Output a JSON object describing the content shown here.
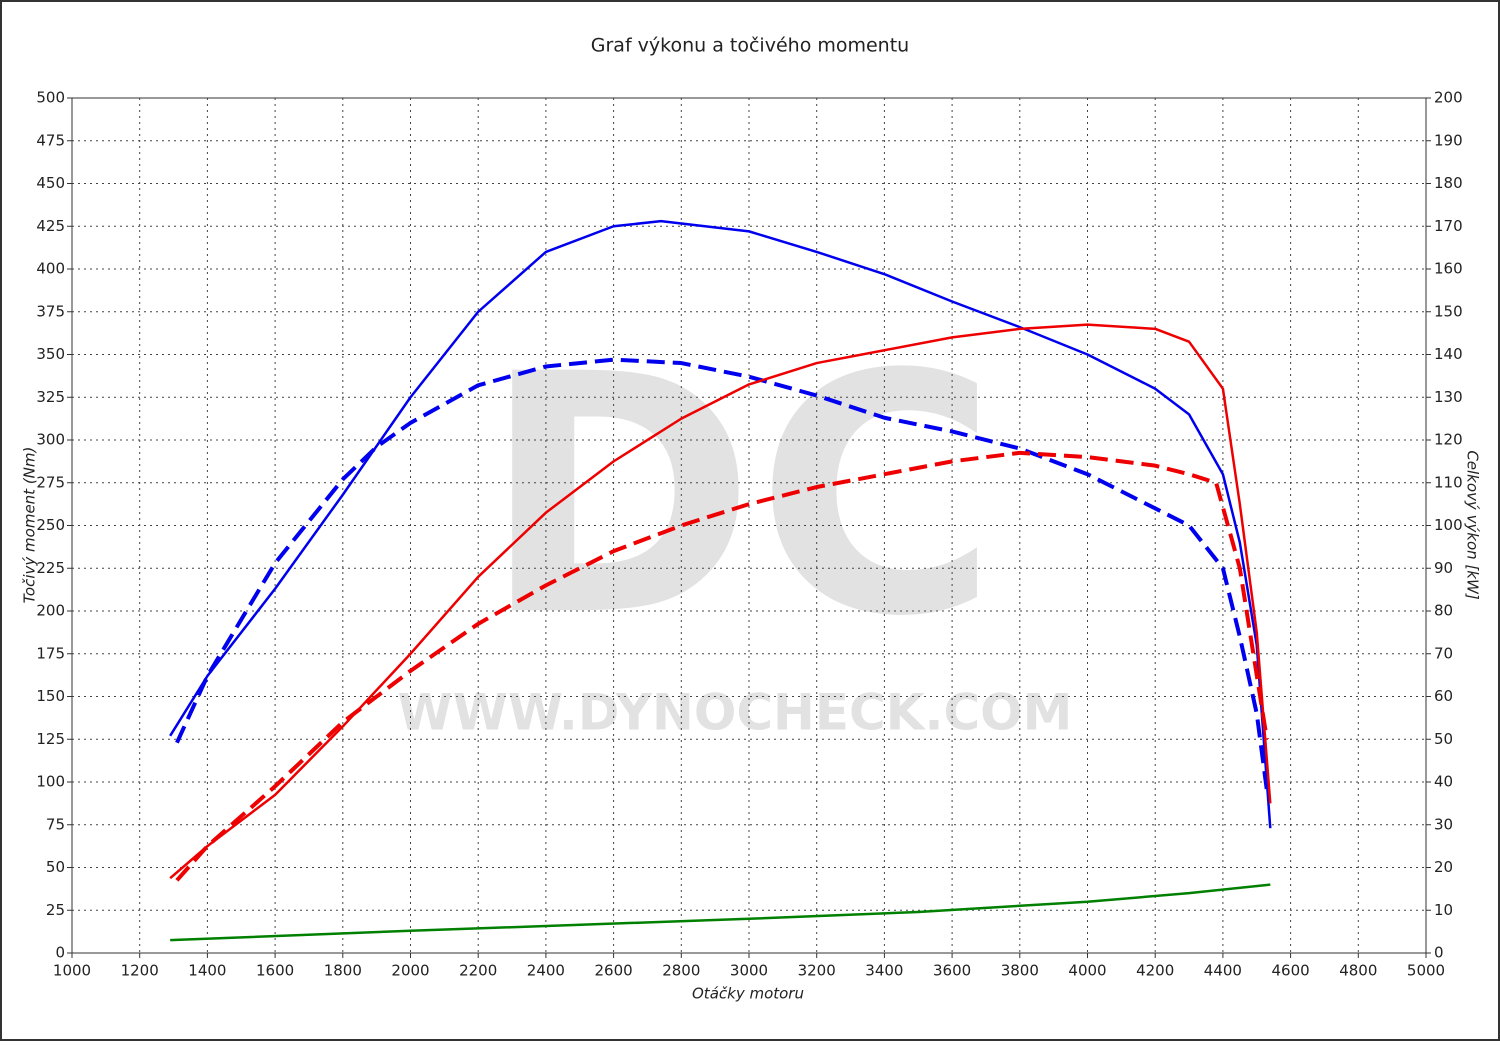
{
  "chart_data": {
    "type": "line",
    "title": "Graf výkonu a točivého momentu",
    "xlabel": "Otáčky motoru",
    "ylabel": "Točivý moment (Nm)",
    "y2label": "Celkový výkon [kW]",
    "watermark": "DC",
    "watermark_url": "WWW.DYNOCHECK.COM",
    "xlim": [
      1000,
      5000
    ],
    "xticks": [
      1000,
      1200,
      1400,
      1600,
      1800,
      2000,
      2200,
      2400,
      2600,
      2800,
      3000,
      3200,
      3400,
      3600,
      3800,
      4000,
      4200,
      4400,
      4600,
      4800,
      5000
    ],
    "ylim": [
      0,
      500
    ],
    "yticks": [
      0,
      25,
      50,
      75,
      100,
      125,
      150,
      175,
      200,
      225,
      250,
      275,
      300,
      325,
      350,
      375,
      400,
      425,
      450,
      475,
      500
    ],
    "y2lim": [
      0,
      200
    ],
    "y2ticks": [
      0,
      10,
      20,
      30,
      40,
      50,
      60,
      70,
      80,
      90,
      100,
      110,
      120,
      130,
      140,
      150,
      160,
      170,
      180,
      190,
      200
    ],
    "grid": true,
    "series": [
      {
        "color": "#0000ee",
        "dash": false,
        "axis": "y",
        "x": [
          1290,
          1400,
          1600,
          1800,
          2000,
          2200,
          2400,
          2600,
          2740,
          3000,
          3200,
          3400,
          3600,
          3800,
          4000,
          4200,
          4300,
          4400,
          4450,
          4500,
          4540
        ],
        "values": [
          127,
          162,
          213,
          268,
          325,
          375,
          410,
          425,
          428,
          422,
          410,
          397,
          381,
          366,
          350,
          330,
          315,
          280,
          240,
          180,
          73
        ]
      },
      {
        "color": "#0000ee",
        "dash": true,
        "axis": "y",
        "x": [
          1310,
          1400,
          1600,
          1800,
          1900,
          2000,
          2200,
          2400,
          2600,
          2800,
          3000,
          3200,
          3400,
          3600,
          3800,
          4000,
          4200,
          4300,
          4400,
          4450,
          4500,
          4530
        ],
        "values": [
          123,
          162,
          228,
          277,
          296,
          310,
          332,
          343,
          347,
          345,
          337,
          326,
          313,
          305,
          295,
          280,
          260,
          250,
          225,
          185,
          140,
          95
        ]
      },
      {
        "color": "#ee0000",
        "dash": false,
        "axis": "y2",
        "x": [
          1290,
          1400,
          1600,
          1800,
          2000,
          2200,
          2400,
          2600,
          2800,
          3000,
          3200,
          3400,
          3600,
          3800,
          4000,
          4200,
          4300,
          4400,
          4450,
          4500,
          4540
        ],
        "values": [
          17.5,
          25,
          37,
          53,
          70,
          88,
          103,
          115,
          125,
          133,
          138,
          141,
          144,
          146,
          147,
          146,
          143,
          132,
          105,
          75,
          35
        ]
      },
      {
        "color": "#ee0000",
        "dash": true,
        "axis": "y2",
        "x": [
          1310,
          1400,
          1600,
          1800,
          2000,
          2200,
          2400,
          2600,
          2800,
          3000,
          3200,
          3400,
          3600,
          3800,
          4000,
          4200,
          4300,
          4380,
          4450,
          4500,
          4530
        ],
        "values": [
          17,
          25,
          39,
          54,
          66,
          77,
          86,
          94,
          100,
          105,
          109,
          112,
          115,
          117,
          116,
          114,
          112,
          110,
          90,
          65,
          50
        ]
      },
      {
        "color": "#008000",
        "dash": false,
        "axis": "y",
        "x": [
          1290,
          2000,
          3000,
          3500,
          4000,
          4300,
          4540
        ],
        "values": [
          7.5,
          13,
          20,
          24,
          30,
          35,
          40
        ]
      }
    ]
  }
}
